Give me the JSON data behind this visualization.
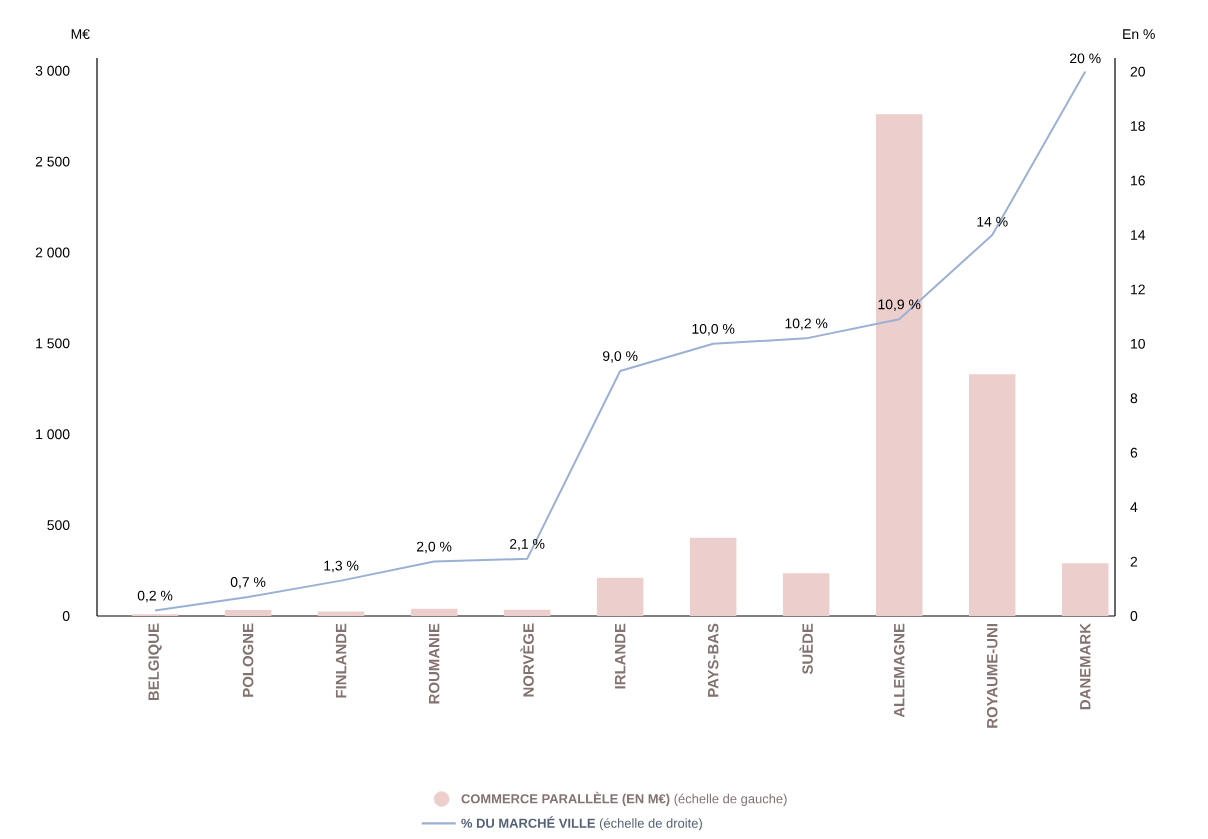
{
  "chart_data": {
    "type": "bar",
    "ylabel": "M€",
    "y2label": "En %",
    "categories": [
      "BELGIQUE",
      "POLOGNE",
      "FINLANDE",
      "ROUMANIE",
      "NORVÈGE",
      "IRLANDE",
      "PAYS-BAS",
      "SUÈDE",
      "ALLEMAGNE",
      "ROYAUME-UNI",
      "DANEMARK"
    ],
    "series": [
      {
        "name": "**COMMERCE PARALLÈLE (EN M€)** (échelle de gauche)",
        "color": "#eccfcc",
        "values": [
          10,
          33,
          25,
          40,
          35,
          210,
          430,
          235,
          2760,
          1330,
          290
        ]
      },
      {
        "name": "**% DU MARCHÉ VILLE** (échelle de droite)",
        "type": "line",
        "axis": "y2",
        "color": "#9bb0d4",
        "values": [
          0.2,
          0.7,
          1.3,
          2.0,
          2.1,
          9.0,
          10.0,
          10.2,
          10.9,
          14,
          20
        ],
        "value_labels": [
          "0,2 %",
          "0,7 %",
          "1,3 %",
          "2,0 %",
          "2,1 %",
          "9,0 %",
          "10,0 %",
          "10,2 %",
          "10,9 %",
          "14 %",
          "20 %"
        ]
      }
    ],
    "ylim": [
      0,
      3070
    ],
    "yticks": [
      0,
      500,
      {
        "value": 1000,
        "label": "1 000"
      },
      {
        "value": 1500,
        "label": "1 500"
      },
      {
        "value": 2000,
        "label": "2 000"
      },
      {
        "value": 2500,
        "label": "2 500"
      },
      {
        "value": 3000,
        "label": "3 000"
      }
    ],
    "y2lim": [
      0,
      20.5
    ],
    "y2ticks": [
      0,
      2,
      4,
      6,
      8,
      10,
      12,
      14,
      16,
      18,
      20
    ],
    "legend": "bottom"
  }
}
